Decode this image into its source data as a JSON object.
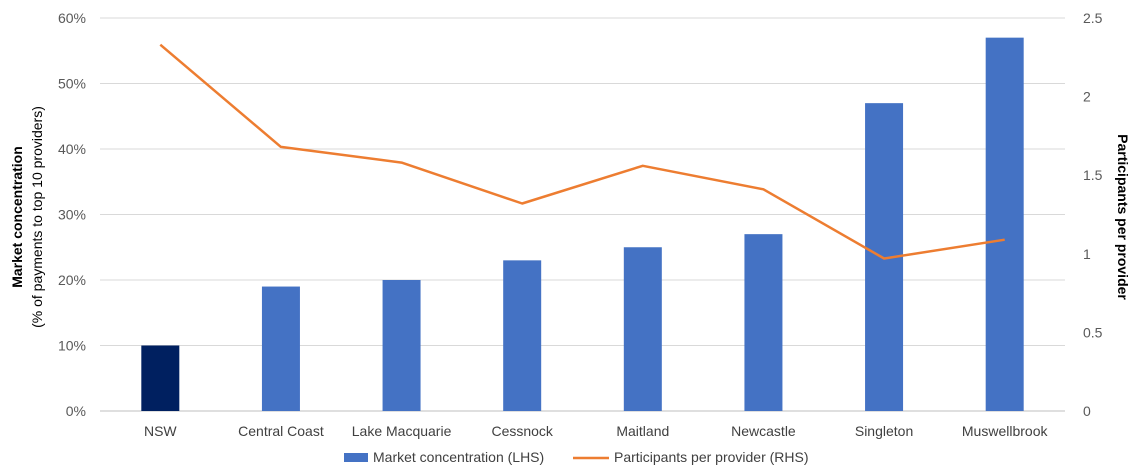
{
  "chart_data": {
    "type": "bar",
    "categories": [
      "NSW",
      "Central Coast",
      "Lake Macquarie",
      "Cessnock",
      "Maitland",
      "Newcastle",
      "Singleton",
      "Muswellbrook"
    ],
    "series": [
      {
        "name": "Market concentration (LHS)",
        "type": "bar",
        "axis": "left",
        "values": [
          10,
          19,
          20,
          23,
          25,
          27,
          47,
          57
        ],
        "color": "#4472C4",
        "highlight_color": "#002060",
        "highlight_index": 0
      },
      {
        "name": "Participants per provider (RHS)",
        "type": "line",
        "axis": "right",
        "values": [
          2.33,
          1.68,
          1.58,
          1.32,
          1.56,
          1.41,
          0.97,
          1.09
        ],
        "color": "#ED7D31"
      }
    ],
    "y_left": {
      "label_bold": "Market concentration",
      "label_sub": "(% of payments to top 10 providers)",
      "ylim": [
        0,
        60
      ],
      "ticks": [
        0,
        10,
        20,
        30,
        40,
        50,
        60
      ],
      "tick_labels": [
        "0%",
        "10%",
        "20%",
        "30%",
        "40%",
        "50%",
        "60%"
      ]
    },
    "y_right": {
      "label": "Participants per provider",
      "ylim": [
        0,
        2.5
      ],
      "ticks": [
        0,
        0.5,
        1,
        1.5,
        2,
        2.5
      ],
      "tick_labels": [
        "0",
        "0.5",
        "1",
        "1.5",
        "2",
        "2.5"
      ]
    },
    "grid": true,
    "legend_position": "bottom"
  }
}
